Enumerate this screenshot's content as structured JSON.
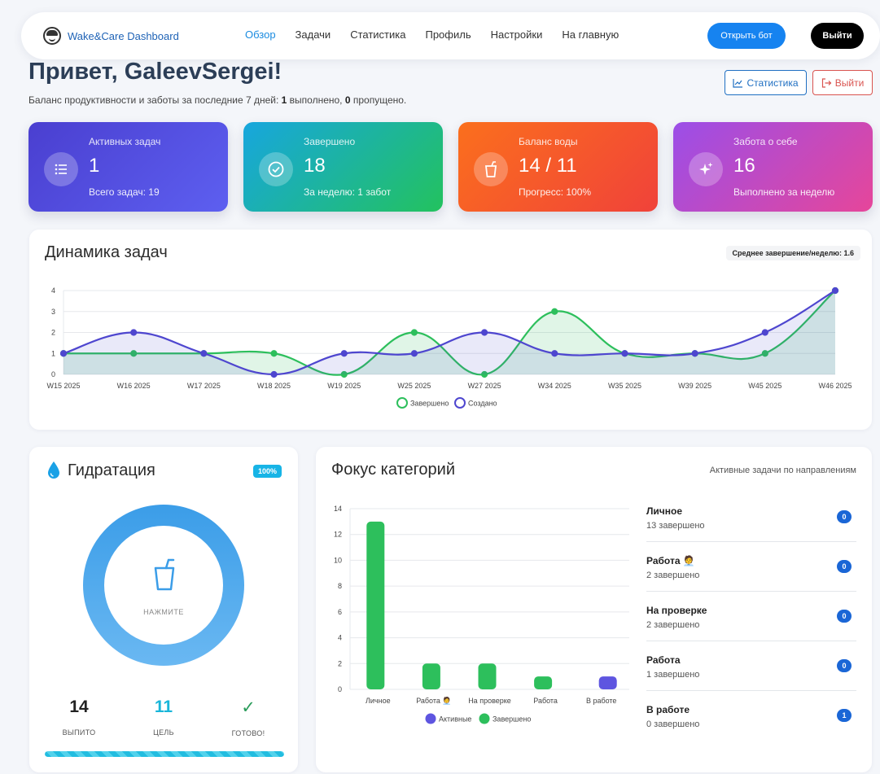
{
  "nav": {
    "brand": "Wake&Care Dashboard",
    "links": [
      "Обзор",
      "Задачи",
      "Статистика",
      "Профиль",
      "Настройки",
      "На главную"
    ],
    "open_bot": "Открыть бот",
    "logout": "Выйти"
  },
  "header": {
    "greeting": "Привет, GaleevSergei!",
    "subtitle_prefix": "Баланс продуктивности и заботы за последние 7 дней: ",
    "completed": "1",
    "subtitle_mid": " выполнено, ",
    "skipped": "0",
    "subtitle_suffix": " пропущено.",
    "stats_button": "Статистика",
    "logout_button": "Выйти"
  },
  "stats": [
    {
      "label": "Активных задач",
      "value": "1",
      "foot": "Всего задач: 19",
      "icon": "list-icon"
    },
    {
      "label": "Завершено",
      "value": "18",
      "foot": "За неделю: 1 забот",
      "icon": "check-circle-icon"
    },
    {
      "label": "Баланс воды",
      "value": "14 / 11",
      "foot": "Прогресс: 100%",
      "icon": "cup-icon"
    },
    {
      "label": "Забота о себе",
      "value": "16",
      "foot": "Выполнено за неделю",
      "icon": "sparkle-icon"
    }
  ],
  "dynamics": {
    "title": "Динамика задач",
    "badge": "Среднее завершение/неделю: 1.6"
  },
  "hydration": {
    "title": "Гидратация",
    "badge": "100%",
    "tap_label": "НАЖМИТЕ",
    "drunk_value": "14",
    "drunk_label": "ВЫПИТО",
    "goal_value": "11",
    "goal_label": "ЦЕЛЬ",
    "done_value": "✓",
    "done_label": "ГОТОВО!",
    "progress": 1.0
  },
  "focus": {
    "title": "Фокус категорий",
    "subtitle": "Активные задачи по направлениям",
    "categories": [
      {
        "name": "Личное",
        "sub": "13 завершено",
        "count": "0"
      },
      {
        "name": "Работа 🧑‍💼",
        "sub": "2 завершено",
        "count": "0"
      },
      {
        "name": "На проверке",
        "sub": "2 завершено",
        "count": "0"
      },
      {
        "name": "Работа",
        "sub": "1 завершено",
        "count": "0"
      },
      {
        "name": "В работе",
        "sub": "0 завершено",
        "count": "1"
      }
    ]
  },
  "colors": {
    "completed": "#2dbf5c",
    "created": "#4e46cf",
    "accent": "#1683f0"
  },
  "chart_data": [
    {
      "type": "line",
      "x": [
        "W15 2025",
        "W16 2025",
        "W17 2025",
        "W18 2025",
        "W19 2025",
        "W25 2025",
        "W27 2025",
        "W34 2025",
        "W35 2025",
        "W39 2025",
        "W45 2025",
        "W46 2025"
      ],
      "series": [
        {
          "name": "Завершено",
          "values": [
            1,
            1,
            1,
            1,
            0,
            2,
            0,
            3,
            1,
            1,
            1,
            4
          ]
        },
        {
          "name": "Создано",
          "values": [
            1,
            2,
            1,
            0,
            1,
            1,
            2,
            1,
            1,
            1,
            2,
            4
          ]
        }
      ],
      "ylim": [
        0,
        4
      ],
      "yticks": [
        0,
        1,
        2,
        3,
        4
      ],
      "legend": "bottom",
      "grid": true
    },
    {
      "type": "bar",
      "categories": [
        "Личное",
        "Работа 🧑‍💼",
        "На проверке",
        "Работа",
        "В работе"
      ],
      "series": [
        {
          "name": "Активные",
          "values": [
            0,
            0,
            0,
            0,
            1
          ]
        },
        {
          "name": "Завершено",
          "values": [
            13,
            2,
            2,
            1,
            0
          ]
        }
      ],
      "ylim": [
        0,
        14
      ],
      "yticks": [
        0,
        2,
        4,
        6,
        8,
        10,
        12,
        14
      ],
      "legend": "bottom",
      "grid": true
    }
  ]
}
